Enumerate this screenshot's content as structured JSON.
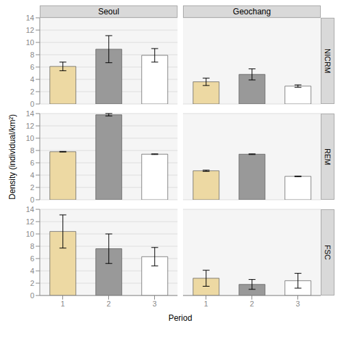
{
  "chart_data": [
    {
      "type": "bar",
      "title": "Seoul",
      "categories": [
        "1",
        "2",
        "3"
      ],
      "values": [
        6.1,
        8.9,
        7.9
      ],
      "errors": [
        0.7,
        2.2,
        1.1
      ],
      "colors": [
        "#EDD9A3",
        "#999999",
        "#FFFFFF"
      ],
      "ylim": [
        0,
        14
      ],
      "yticks": [
        0,
        2,
        4,
        6,
        8,
        10,
        12,
        14
      ],
      "grid": true,
      "tick_labels": "y"
    },
    {
      "type": "bar",
      "title": "Geochang",
      "annotations": [
        "NICRM"
      ],
      "categories": [
        "1",
        "2",
        "3"
      ],
      "values": [
        3.6,
        4.8,
        2.9
      ],
      "errors": [
        0.6,
        0.9,
        0.2
      ],
      "colors": [
        "#EDD9A3",
        "#999999",
        "#FFFFFF"
      ],
      "ylim": [
        0,
        14
      ],
      "yticks": [
        0,
        2,
        4,
        6,
        8,
        10,
        12,
        14
      ],
      "grid": true,
      "tick_labels": false
    },
    {
      "type": "bar",
      "ylabel": "Density (individual/km²)",
      "categories": [
        "1",
        "2",
        "3"
      ],
      "values": [
        7.8,
        13.8,
        7.4
      ],
      "errors": [
        0.05,
        0.2,
        0.05
      ],
      "colors": [
        "#EDD9A3",
        "#999999",
        "#FFFFFF"
      ],
      "ylim": [
        0,
        14
      ],
      "yticks": [
        0,
        2,
        4,
        6,
        8,
        10,
        12,
        14
      ],
      "grid": true,
      "tick_labels": "y"
    },
    {
      "type": "bar",
      "annotations": [
        "REM"
      ],
      "categories": [
        "1",
        "2",
        "3"
      ],
      "values": [
        4.7,
        7.4,
        3.8
      ],
      "errors": [
        0.1,
        0.05,
        0.05
      ],
      "colors": [
        "#EDD9A3",
        "#999999",
        "#FFFFFF"
      ],
      "ylim": [
        0,
        14
      ],
      "yticks": [
        0,
        2,
        4,
        6,
        8,
        10,
        12,
        14
      ],
      "grid": true,
      "tick_labels": false
    },
    {
      "type": "bar",
      "xlabel": "Period",
      "categories": [
        "1",
        "2",
        "3"
      ],
      "values": [
        10.4,
        7.6,
        6.3
      ],
      "errors": [
        2.7,
        2.4,
        1.5
      ],
      "colors": [
        "#EDD9A3",
        "#999999",
        "#FFFFFF"
      ],
      "ylim": [
        0,
        14
      ],
      "yticks": [
        0,
        2,
        4,
        6,
        8,
        10,
        12,
        14
      ],
      "grid": true
    },
    {
      "type": "bar",
      "annotations": [
        "FSC"
      ],
      "categories": [
        "1",
        "2",
        "3"
      ],
      "values": [
        2.8,
        1.8,
        2.4
      ],
      "errors": [
        1.3,
        0.8,
        1.2
      ],
      "colors": [
        "#EDD9A3",
        "#999999",
        "#FFFFFF"
      ],
      "ylim": [
        0,
        14
      ],
      "yticks": [
        0,
        2,
        4,
        6,
        8,
        10,
        12,
        14
      ],
      "grid": true,
      "tick_labels": "x"
    }
  ]
}
